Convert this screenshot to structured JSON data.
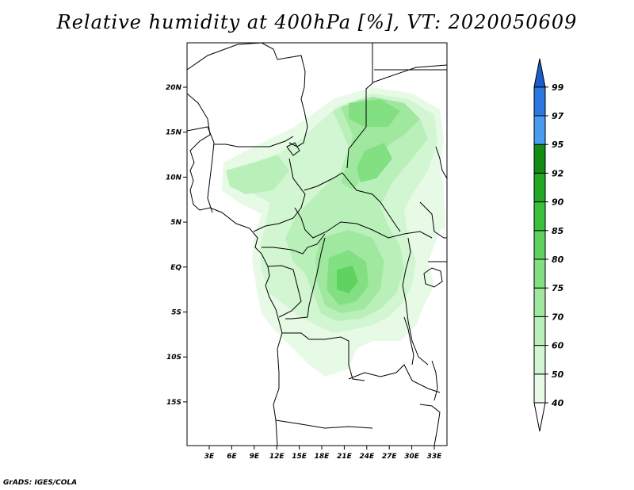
{
  "title": "Relative humidity at 400hPa [%], VT: 2020050609",
  "footer": "GrADS: IGES/COLA",
  "map": {
    "x_ticks": [
      "3E",
      "6E",
      "9E",
      "12E",
      "15E",
      "18E",
      "21E",
      "24E",
      "27E",
      "30E",
      "33E"
    ],
    "y_ticks": [
      "20N",
      "15N",
      "10N",
      "5N",
      "EQ",
      "5S",
      "10S",
      "15S"
    ]
  },
  "colorbar": {
    "levels": [
      "40",
      "50",
      "60",
      "70",
      "75",
      "80",
      "85",
      "90",
      "92",
      "95",
      "97",
      "99"
    ],
    "colors": [
      "#ffffff",
      "#e6fae6",
      "#d2f5d2",
      "#b9f0b9",
      "#a0e8a0",
      "#82e082",
      "#5fd25f",
      "#3cc03c",
      "#23a823",
      "#128c12",
      "#4a9cf0",
      "#2a78e0",
      "#1a5ccc"
    ]
  }
}
